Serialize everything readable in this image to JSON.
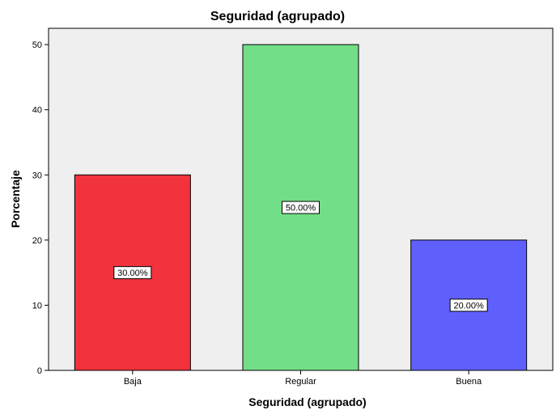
{
  "chart_data": {
    "type": "bar",
    "title": "Seguridad (agrupado)",
    "xlabel": "Seguridad (agrupado)",
    "ylabel": "Porcentaje",
    "categories": [
      "Baja",
      "Regular",
      "Buena"
    ],
    "values": [
      30,
      50,
      20
    ],
    "data_labels": [
      "30.00%",
      "50.00%",
      "20.00%"
    ],
    "colors": [
      "#F2323D",
      "#72DE87",
      "#5F5FFE"
    ],
    "plot_background": "#EFEFEF",
    "ylim": [
      0,
      52.5
    ],
    "yticks": [
      0,
      10,
      20,
      30,
      40,
      50
    ],
    "grid": false,
    "legend": "none"
  }
}
